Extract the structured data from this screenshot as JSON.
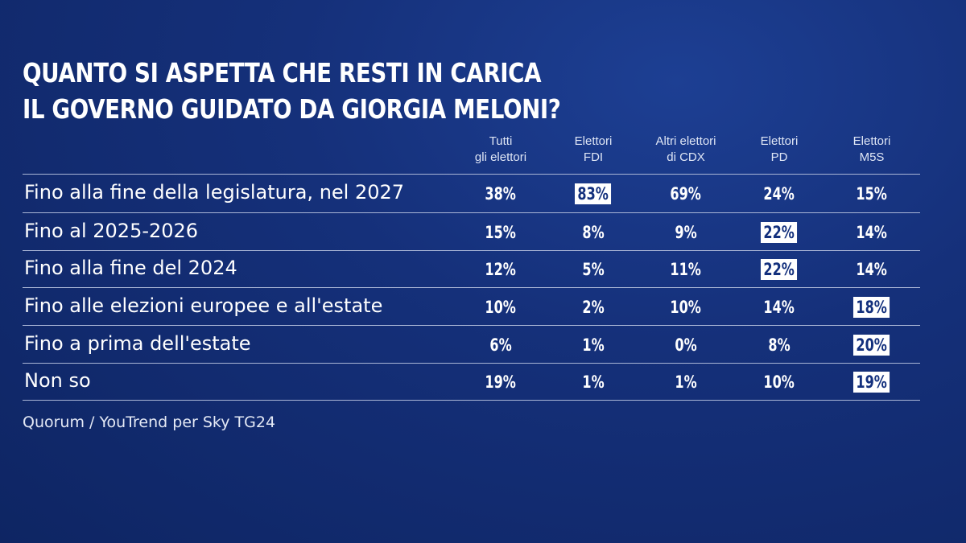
{
  "title": [
    "QUANTO SI ASPETTA CHE RESTI IN CARICA",
    "IL GOVERNO GUIDATO DA GIORGIA MELONI?"
  ],
  "source": "Quorum / YouTrend per Sky TG24",
  "colors": {
    "background": "#15307a",
    "highlight_bg": "#ffffff",
    "highlight_text": "#13307d"
  },
  "chart_data": {
    "type": "table",
    "title": "QUANTO SI ASPETTA CHE RESTI IN CARICA IL GOVERNO GUIDATO DA GIORGIA MELONI?",
    "columns": [
      [
        "Tutti",
        "gli elettori"
      ],
      [
        "Elettori",
        "FDI"
      ],
      [
        "Altri elettori",
        "di CDX"
      ],
      [
        "Elettori",
        "PD"
      ],
      [
        "Elettori",
        "M5S"
      ]
    ],
    "rows": [
      {
        "label": "Fino alla fine della legislatura, nel 2027",
        "values": [
          "38%",
          "83%",
          "69%",
          "24%",
          "15%"
        ],
        "highlight": [
          1
        ]
      },
      {
        "label": "Fino al 2025-2026",
        "values": [
          "15%",
          "8%",
          "9%",
          "22%",
          "14%"
        ],
        "highlight": [
          3
        ]
      },
      {
        "label": "Fino alla fine del 2024",
        "values": [
          "12%",
          "5%",
          "11%",
          "22%",
          "14%"
        ],
        "highlight": [
          3
        ]
      },
      {
        "label": "Fino alle elezioni europee e all'estate",
        "values": [
          "10%",
          "2%",
          "10%",
          "14%",
          "18%"
        ],
        "highlight": [
          4
        ]
      },
      {
        "label": "Fino a prima dell'estate",
        "values": [
          "6%",
          "1%",
          "0%",
          "8%",
          "20%"
        ],
        "highlight": [
          4
        ]
      },
      {
        "label": "Non so",
        "values": [
          "19%",
          "1%",
          "1%",
          "10%",
          "19%"
        ],
        "highlight": [
          4
        ]
      }
    ]
  }
}
